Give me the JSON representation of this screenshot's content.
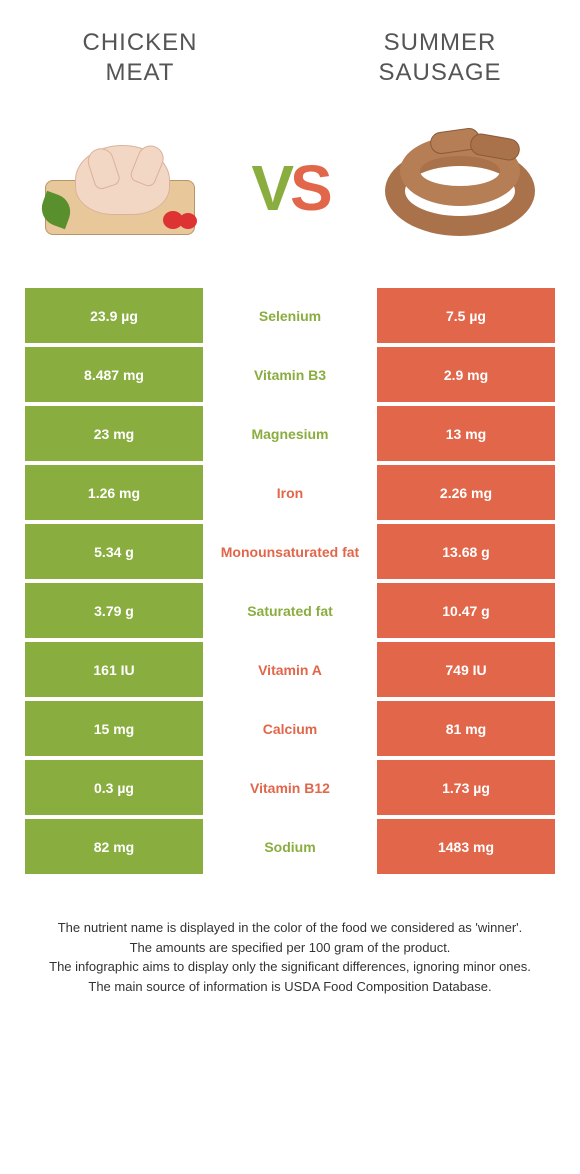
{
  "colors": {
    "green": "#8aad3f",
    "orange": "#e2664a",
    "green_dim": "#c4d49d",
    "orange_dim": "#f0b2a4",
    "white": "#ffffff",
    "text": "#333333"
  },
  "fonts": {
    "title_size": 24,
    "cell_size": 14,
    "vs_size": 64,
    "footer_size": 13
  },
  "left_food": {
    "title_line1": "CHICKEN",
    "title_line2": "MEAT"
  },
  "right_food": {
    "title_line1": "SUMMER",
    "title_line2": "SAUSAGE"
  },
  "vs_label": {
    "v": "V",
    "s": "S"
  },
  "rows": [
    {
      "left": "23.9 µg",
      "label": "Selenium",
      "right": "7.5 µg",
      "winner": "left"
    },
    {
      "left": "8.487 mg",
      "label": "Vitamin B3",
      "right": "2.9 mg",
      "winner": "left"
    },
    {
      "left": "23 mg",
      "label": "Magnesium",
      "right": "13 mg",
      "winner": "left"
    },
    {
      "left": "1.26 mg",
      "label": "Iron",
      "right": "2.26 mg",
      "winner": "right"
    },
    {
      "left": "5.34 g",
      "label": "Monounsaturated fat",
      "right": "13.68 g",
      "winner": "right"
    },
    {
      "left": "3.79 g",
      "label": "Saturated fat",
      "right": "10.47 g",
      "winner": "left"
    },
    {
      "left": "161 IU",
      "label": "Vitamin A",
      "right": "749 IU",
      "winner": "right"
    },
    {
      "left": "15 mg",
      "label": "Calcium",
      "right": "81 mg",
      "winner": "right"
    },
    {
      "left": "0.3 µg",
      "label": "Vitamin B12",
      "right": "1.73 µg",
      "winner": "right"
    },
    {
      "left": "82 mg",
      "label": "Sodium",
      "right": "1483 mg",
      "winner": "left"
    }
  ],
  "footer": {
    "line1": "The nutrient name is displayed in the color of the food we considered as 'winner'.",
    "line2": "The amounts are specified per 100 gram of the product.",
    "line3": "The infographic aims to display only the significant differences, ignoring minor ones.",
    "line4": "The main source of information is USDA Food Composition Database."
  }
}
